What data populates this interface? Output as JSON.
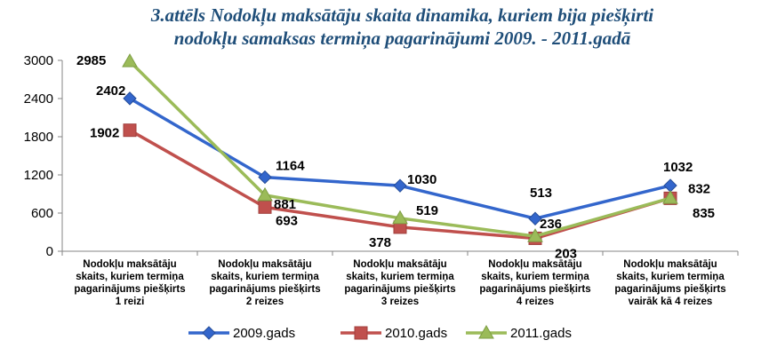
{
  "chart_data": {
    "type": "line",
    "title_line1": "3.attēls   Nodokļu maksātāju skaita dinamika, kuriem bija piešķirti",
    "title_line2": "nodokļu samaksas termiņa pagarinājumi 2009. - 2011.gadā",
    "categories": [
      [
        "Nodokļu maksātāju",
        "skaits, kuriem termiņa",
        "pagarinājums piešķirts",
        "1 reizi"
      ],
      [
        "Nodokļu maksātāju",
        "skaits, kuriem termiņa",
        "pagarinājums piešķirts",
        "2 reizes"
      ],
      [
        "Nodokļu maksātāju",
        "skaits, kuriem termiņa",
        "pagarinājums piešķirts",
        "3 reizes"
      ],
      [
        "Nodokļu maksātāju",
        "skaits, kuriem termiņa",
        "pagarinājums piešķirts",
        "4 reizes"
      ],
      [
        "Nodokļu maksātāju",
        "skaits, kuriem termiņa",
        "pagarinājums piešķirts",
        "vairāk kā 4 reizes"
      ]
    ],
    "ylim": [
      0,
      3000
    ],
    "yticks": [
      0,
      600,
      1200,
      1800,
      2400,
      3000
    ],
    "grid": false,
    "legend_position": "bottom",
    "series": [
      {
        "name": "2009.gads",
        "values": [
          2402,
          1164,
          1030,
          513,
          1032
        ],
        "color": "#3366cc",
        "marker": "diamond"
      },
      {
        "name": "2010.gads",
        "values": [
          1902,
          693,
          378,
          203,
          832
        ],
        "color": "#c0504d",
        "marker": "square"
      },
      {
        "name": "2011.gads",
        "values": [
          2985,
          881,
          519,
          236,
          835
        ],
        "color": "#9bbb59",
        "marker": "triangle"
      }
    ]
  }
}
